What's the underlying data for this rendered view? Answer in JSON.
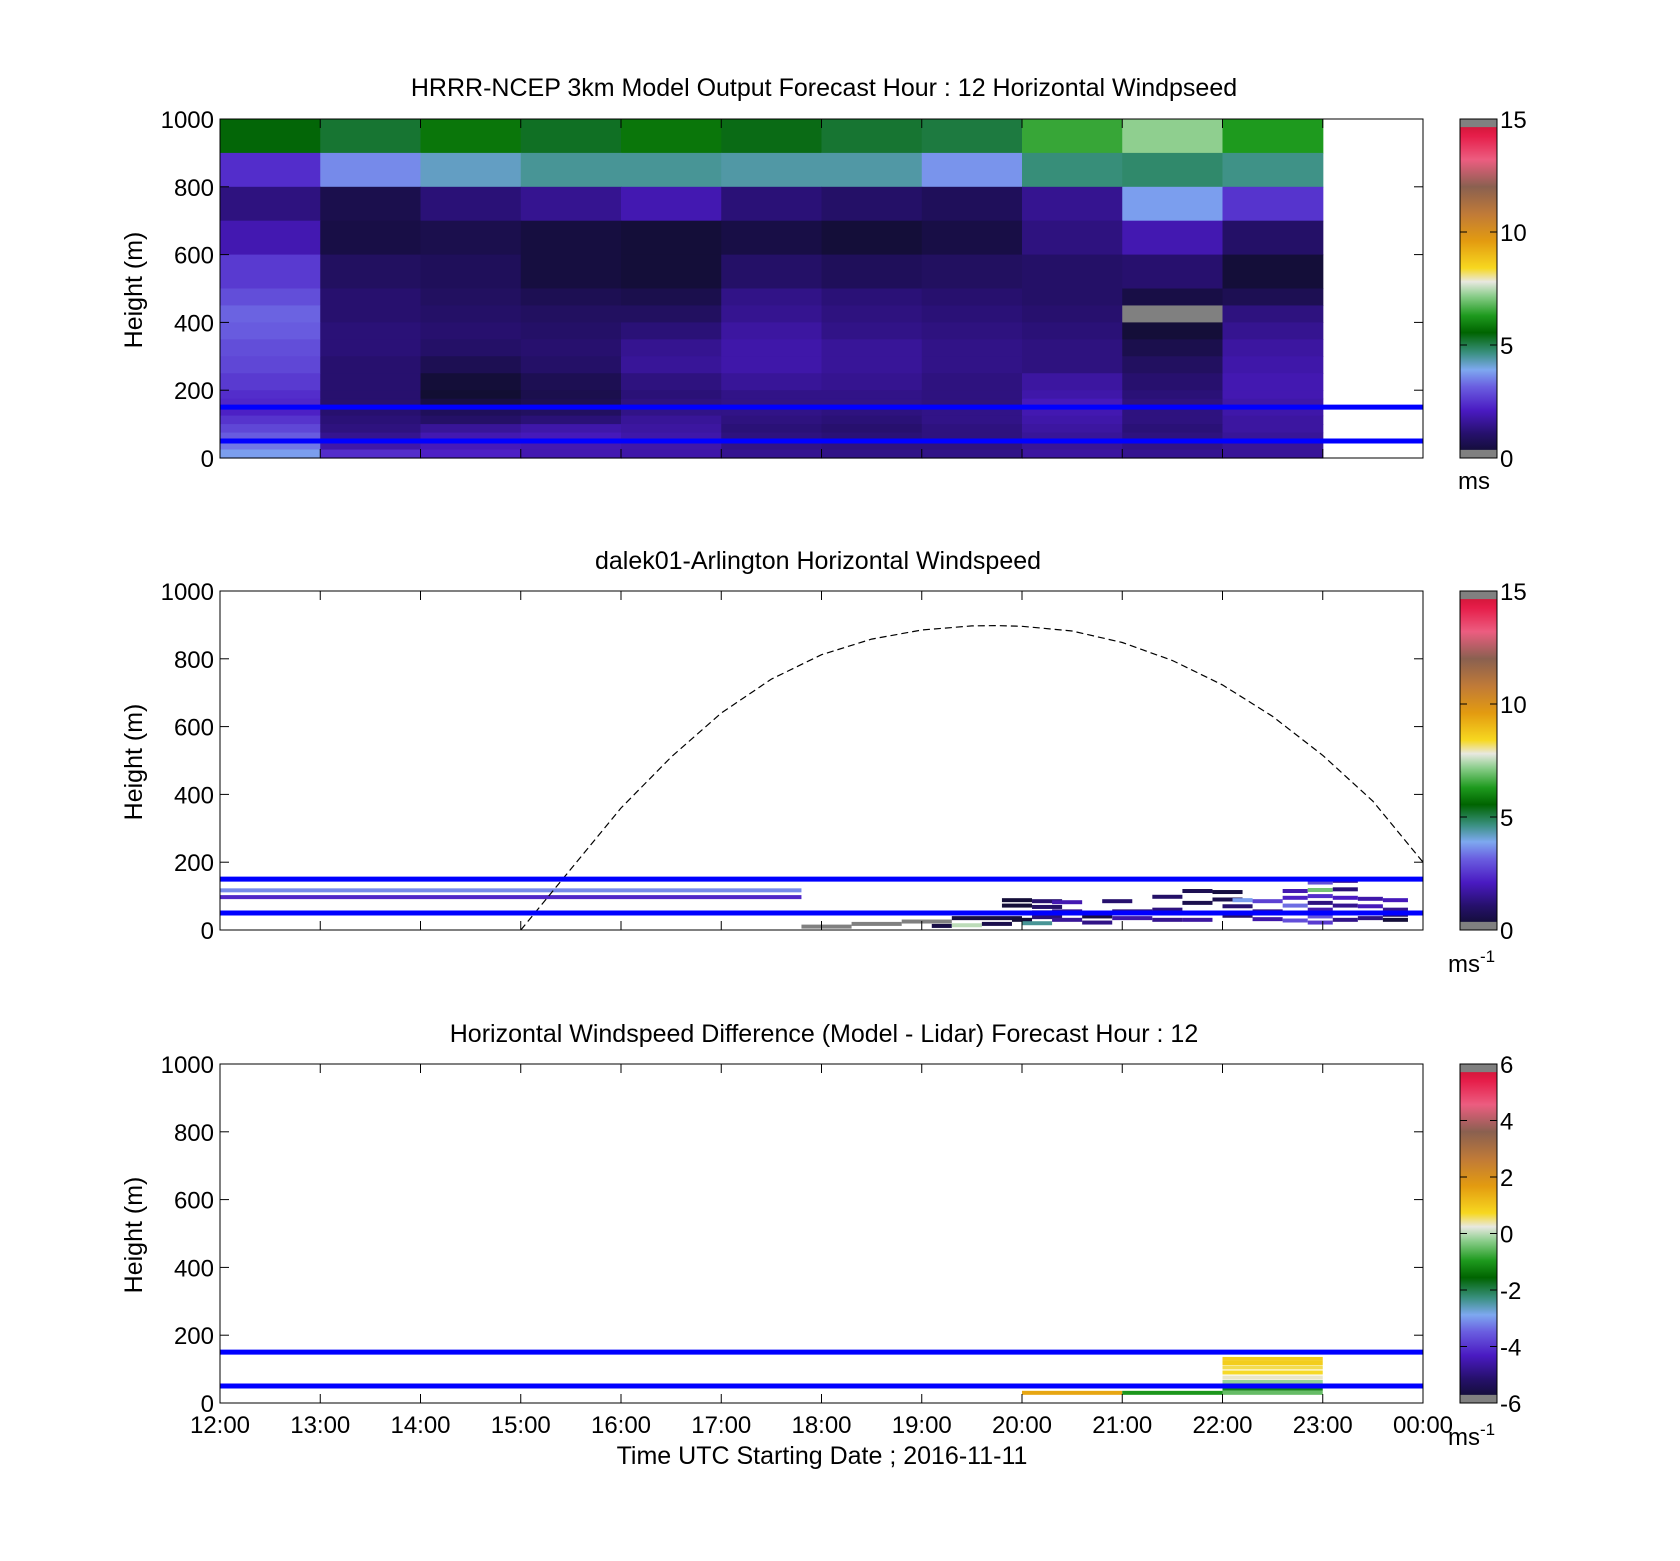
{
  "figure": {
    "xlabel": "Time UTC  Starting Date ; 2016-11-11",
    "x_tick_labels": [
      "12:00",
      "13:00",
      "14:00",
      "15:00",
      "16:00",
      "17:00",
      "18:00",
      "19:00",
      "20:00",
      "21:00",
      "22:00",
      "23:00",
      "00:00"
    ],
    "reference_lines_height_m": [
      50,
      150
    ],
    "reference_line_color": "#0000ff"
  },
  "chart_data": [
    {
      "type": "heatmap",
      "title": "HRRR-NCEP 3km Model Output   Forecast Hour : 12 Horizontal Windpseed",
      "ylabel": "Height (m)",
      "ylim": [
        0,
        1000
      ],
      "y_ticks": [
        "0",
        "200",
        "400",
        "600",
        "800",
        "1000"
      ],
      "xlim_hours_utc": [
        12,
        24
      ],
      "colorbar": {
        "min": 0,
        "max": 15,
        "ticks": [
          "0",
          "5",
          "10",
          "15"
        ],
        "unit": "ms"
      },
      "columns_start_hour": [
        12,
        13,
        14,
        15,
        16,
        17,
        18,
        19,
        20,
        21,
        22
      ],
      "row_tops_m": [
        1000,
        900,
        800,
        700,
        600,
        500,
        450,
        400,
        350,
        300,
        250,
        200,
        175,
        150,
        125,
        100,
        75,
        50,
        25
      ],
      "values_ms": [
        [
          5.5,
          5.2,
          5.8,
          5.3,
          5.8,
          5.4,
          5.2,
          5.1,
          6.5,
          7.2,
          6.3
        ],
        [
          2.4,
          3.6,
          4.2,
          4.5,
          4.5,
          4.4,
          4.4,
          3.7,
          4.7,
          4.8,
          4.6
        ],
        [
          1.3,
          0.6,
          1.2,
          1.5,
          1.9,
          1.2,
          1.0,
          0.8,
          1.5,
          3.8,
          2.5
        ],
        [
          1.9,
          0.5,
          0.6,
          0.4,
          0.3,
          0.5,
          0.3,
          0.5,
          1.3,
          1.9,
          1.0
        ],
        [
          2.6,
          0.9,
          0.8,
          0.4,
          0.3,
          1.0,
          0.8,
          0.9,
          1.0,
          1.1,
          0.3
        ],
        [
          2.9,
          1.1,
          0.9,
          0.7,
          0.6,
          1.4,
          1.2,
          1.1,
          1.0,
          0.5,
          0.7
        ],
        [
          3.2,
          1.1,
          1.0,
          0.9,
          0.9,
          1.5,
          1.3,
          1.2,
          1.1,
          -1,
          1.3
        ],
        [
          3.1,
          1.2,
          1.1,
          1.0,
          1.2,
          1.7,
          1.4,
          1.3,
          1.2,
          0.3,
          1.5
        ],
        [
          2.9,
          1.2,
          1.0,
          1.1,
          1.5,
          1.8,
          1.6,
          1.4,
          1.3,
          0.6,
          1.7
        ],
        [
          2.8,
          1.1,
          0.7,
          1.0,
          1.6,
          1.8,
          1.6,
          1.4,
          1.3,
          0.9,
          1.8
        ],
        [
          2.6,
          1.1,
          0.3,
          0.7,
          1.3,
          1.6,
          1.5,
          1.3,
          1.7,
          1.1,
          1.9
        ],
        [
          2.4,
          1.1,
          0.2,
          0.6,
          1.2,
          1.4,
          1.4,
          1.3,
          1.8,
          1.2,
          1.9
        ],
        [
          2.3,
          1.1,
          0.5,
          0.7,
          1.3,
          1.4,
          1.4,
          1.3,
          2.0,
          1.3,
          1.8
        ],
        [
          2.2,
          1.1,
          0.8,
          0.9,
          1.4,
          1.4,
          1.3,
          1.4,
          1.9,
          1.3,
          1.8
        ],
        [
          2.5,
          1.2,
          1.0,
          1.2,
          1.6,
          1.3,
          1.2,
          1.4,
          1.8,
          1.3,
          1.7
        ],
        [
          2.8,
          1.3,
          1.6,
          1.8,
          1.7,
          1.2,
          1.1,
          1.3,
          1.7,
          1.2,
          1.7
        ],
        [
          3.1,
          1.5,
          1.9,
          2.0,
          1.8,
          1.3,
          1.2,
          1.3,
          1.6,
          1.3,
          1.6
        ],
        [
          3.4,
          1.8,
          2.0,
          1.9,
          1.8,
          1.4,
          1.3,
          1.3,
          1.6,
          1.4,
          1.6
        ],
        [
          3.8,
          2.4,
          2.2,
          1.9,
          1.8,
          1.5,
          1.4,
          1.4,
          1.7,
          1.5,
          1.6
        ]
      ]
    },
    {
      "type": "heatmap",
      "title": "dalek01-Arlington  Horizontal Windspeed",
      "ylabel": "Height (m)",
      "ylim": [
        0,
        1000
      ],
      "y_ticks": [
        "0",
        "200",
        "400",
        "600",
        "800",
        "1000"
      ],
      "xlim_hours_utc": [
        12,
        24
      ],
      "colorbar": {
        "min": 0,
        "max": 15,
        "ticks": [
          "0",
          "5",
          "10",
          "15"
        ],
        "unit": "ms",
        "unit_sup": "-1"
      },
      "dashed_curve": {
        "color": "#000000",
        "x_hours": [
          15.0,
          15.5,
          16.0,
          16.5,
          17.0,
          17.5,
          18.0,
          18.5,
          19.0,
          19.5,
          19.75,
          20.0,
          20.5,
          21.0,
          21.5,
          22.0,
          22.5,
          23.0,
          23.5,
          24.0
        ],
        "heights_m": [
          0,
          180,
          360,
          510,
          640,
          740,
          812,
          858,
          885,
          897,
          898,
          896,
          882,
          848,
          795,
          723,
          630,
          515,
          380,
          200
        ]
      },
      "samples": [
        {
          "x0": 12.0,
          "x1": 17.8,
          "h": 117,
          "v": 3.6
        },
        {
          "x0": 12.0,
          "x1": 17.8,
          "h": 97,
          "v": 2.3
        },
        {
          "x0": 17.8,
          "x1": 18.3,
          "h": 10,
          "v": -1
        },
        {
          "x0": 18.3,
          "x1": 18.8,
          "h": 18,
          "v": -1
        },
        {
          "x0": 18.8,
          "x1": 19.3,
          "h": 25,
          "v": -1
        },
        {
          "x0": 19.1,
          "x1": 19.3,
          "h": 12,
          "v": 0.5
        },
        {
          "x0": 19.3,
          "x1": 19.6,
          "h": 14,
          "v": 7.5
        },
        {
          "x0": 19.6,
          "x1": 19.9,
          "h": 18,
          "v": 0.6
        },
        {
          "x0": 19.3,
          "x1": 20.0,
          "h": 35,
          "v": 0.4
        },
        {
          "x0": 19.9,
          "x1": 20.1,
          "h": 30,
          "v": 0.3
        },
        {
          "x0": 20.0,
          "x1": 20.3,
          "h": 20,
          "v": 4.5
        },
        {
          "x0": 19.8,
          "x1": 20.1,
          "h": 88,
          "v": 0.3
        },
        {
          "x0": 19.8,
          "x1": 20.1,
          "h": 72,
          "v": 0.3
        },
        {
          "x0": 20.1,
          "x1": 20.4,
          "h": 85,
          "v": 1.1
        },
        {
          "x0": 20.1,
          "x1": 20.4,
          "h": 68,
          "v": 1.0
        },
        {
          "x0": 20.1,
          "x1": 20.4,
          "h": 52,
          "v": 0.5
        },
        {
          "x0": 20.1,
          "x1": 20.4,
          "h": 38,
          "v": 1.2
        },
        {
          "x0": 20.3,
          "x1": 20.6,
          "h": 82,
          "v": 1.9
        },
        {
          "x0": 20.3,
          "x1": 20.6,
          "h": 55,
          "v": 1.5
        },
        {
          "x0": 20.3,
          "x1": 20.6,
          "h": 30,
          "v": 1.6
        },
        {
          "x0": 20.6,
          "x1": 20.9,
          "h": 40,
          "v": 0.4
        },
        {
          "x0": 20.6,
          "x1": 20.9,
          "h": 22,
          "v": 1.4
        },
        {
          "x0": 20.8,
          "x1": 21.1,
          "h": 85,
          "v": 1.1
        },
        {
          "x0": 20.9,
          "x1": 21.3,
          "h": 55,
          "v": 1.3
        },
        {
          "x0": 20.9,
          "x1": 21.3,
          "h": 35,
          "v": 1.8
        },
        {
          "x0": 21.3,
          "x1": 21.6,
          "h": 98,
          "v": 1.0
        },
        {
          "x0": 21.3,
          "x1": 21.6,
          "h": 60,
          "v": 1.3
        },
        {
          "x0": 21.3,
          "x1": 21.6,
          "h": 30,
          "v": 1.5
        },
        {
          "x0": 21.6,
          "x1": 21.9,
          "h": 115,
          "v": 0.7
        },
        {
          "x0": 21.6,
          "x1": 21.9,
          "h": 80,
          "v": 0.6
        },
        {
          "x0": 21.6,
          "x1": 22.0,
          "h": 50,
          "v": 1.2
        },
        {
          "x0": 21.6,
          "x1": 21.9,
          "h": 30,
          "v": 1.7
        },
        {
          "x0": 21.9,
          "x1": 22.2,
          "h": 112,
          "v": 0.4
        },
        {
          "x0": 21.9,
          "x1": 22.2,
          "h": 90,
          "v": 0.6
        },
        {
          "x0": 22.0,
          "x1": 22.3,
          "h": 70,
          "v": 1.1
        },
        {
          "x0": 22.0,
          "x1": 22.3,
          "h": 42,
          "v": 1.0
        },
        {
          "x0": 22.1,
          "x1": 22.3,
          "h": 88,
          "v": 3.8
        },
        {
          "x0": 22.3,
          "x1": 22.6,
          "h": 85,
          "v": 2.7
        },
        {
          "x0": 22.3,
          "x1": 22.6,
          "h": 55,
          "v": 1.4
        },
        {
          "x0": 22.3,
          "x1": 22.6,
          "h": 32,
          "v": 1.8
        },
        {
          "x0": 22.6,
          "x1": 22.85,
          "h": 115,
          "v": 1.9
        },
        {
          "x0": 22.6,
          "x1": 22.85,
          "h": 95,
          "v": 2.2
        },
        {
          "x0": 22.6,
          "x1": 22.85,
          "h": 72,
          "v": 3.3
        },
        {
          "x0": 22.6,
          "x1": 22.85,
          "h": 50,
          "v": 1.1
        },
        {
          "x0": 22.6,
          "x1": 22.85,
          "h": 28,
          "v": 2.9
        },
        {
          "x0": 22.85,
          "x1": 23.1,
          "h": 140,
          "v": 2.9
        },
        {
          "x0": 22.85,
          "x1": 23.1,
          "h": 118,
          "v": 7.0
        },
        {
          "x0": 22.85,
          "x1": 23.1,
          "h": 100,
          "v": 2.4
        },
        {
          "x0": 22.85,
          "x1": 23.1,
          "h": 80,
          "v": 1.3
        },
        {
          "x0": 22.85,
          "x1": 23.1,
          "h": 60,
          "v": 1.9
        },
        {
          "x0": 22.85,
          "x1": 23.1,
          "h": 40,
          "v": 3.0
        },
        {
          "x0": 22.85,
          "x1": 23.1,
          "h": 22,
          "v": 2.6
        },
        {
          "x0": 23.1,
          "x1": 23.35,
          "h": 145,
          "v": 1.6
        },
        {
          "x0": 23.1,
          "x1": 23.35,
          "h": 120,
          "v": 1.2
        },
        {
          "x0": 23.1,
          "x1": 23.35,
          "h": 95,
          "v": 2.1
        },
        {
          "x0": 23.1,
          "x1": 23.35,
          "h": 72,
          "v": 1.5
        },
        {
          "x0": 23.1,
          "x1": 23.35,
          "h": 50,
          "v": 0.6
        },
        {
          "x0": 23.1,
          "x1": 23.35,
          "h": 30,
          "v": 1.4
        },
        {
          "x0": 23.35,
          "x1": 23.6,
          "h": 92,
          "v": 1.8
        },
        {
          "x0": 23.35,
          "x1": 23.6,
          "h": 70,
          "v": 2.0
        },
        {
          "x0": 23.35,
          "x1": 23.6,
          "h": 35,
          "v": 1.3
        },
        {
          "x0": 23.6,
          "x1": 23.85,
          "h": 88,
          "v": 2.0
        },
        {
          "x0": 23.6,
          "x1": 23.85,
          "h": 60,
          "v": 1.5
        },
        {
          "x0": 23.6,
          "x1": 23.85,
          "h": 45,
          "v": 0.9
        },
        {
          "x0": 23.6,
          "x1": 23.85,
          "h": 30,
          "v": 0.3
        }
      ]
    },
    {
      "type": "heatmap",
      "title": "Horizontal Windspeed Difference (Model - Lidar) Forecast Hour : 12",
      "ylabel": "Height (m)",
      "ylim": [
        0,
        1000
      ],
      "y_ticks": [
        "0",
        "200",
        "400",
        "600",
        "800",
        "1000"
      ],
      "xlim_hours_utc": [
        12,
        24
      ],
      "colorbar": {
        "min": -6,
        "max": 6,
        "ticks": [
          "-6",
          "-4",
          "-2",
          "0",
          "2",
          "4",
          "6"
        ],
        "unit": "ms",
        "unit_sup": "-1"
      },
      "samples": [
        {
          "x0": 20.0,
          "x1": 21.0,
          "h": 30,
          "v": 1.5
        },
        {
          "x0": 21.0,
          "x1": 22.0,
          "h": 30,
          "v": -1.0
        },
        {
          "x0": 22.0,
          "x1": 23.0,
          "h": 130,
          "v": 0.9
        },
        {
          "x0": 22.0,
          "x1": 23.0,
          "h": 118,
          "v": 0.9
        },
        {
          "x0": 22.0,
          "x1": 23.0,
          "h": 105,
          "v": 0.6
        },
        {
          "x0": 22.0,
          "x1": 23.0,
          "h": 90,
          "v": 0.7
        },
        {
          "x0": 22.0,
          "x1": 23.0,
          "h": 75,
          "v": 0.3
        },
        {
          "x0": 22.0,
          "x1": 23.0,
          "h": 62,
          "v": -0.2
        },
        {
          "x0": 22.0,
          "x1": 23.0,
          "h": 42,
          "v": -1.2
        },
        {
          "x0": 22.0,
          "x1": 23.0,
          "h": 30,
          "v": -0.5
        }
      ]
    }
  ]
}
